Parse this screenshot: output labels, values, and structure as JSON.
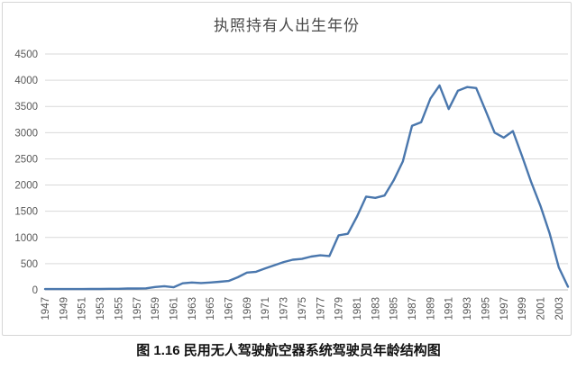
{
  "caption": "图 1.16  民用无人驾驶航空器系统驾驶员年龄结构图",
  "chart_data": {
    "type": "line",
    "title": "执照持有人出生年份",
    "xlabel": "",
    "ylabel": "",
    "ylim": [
      0,
      4500
    ],
    "yticks": [
      0,
      500,
      1000,
      1500,
      2000,
      2500,
      3000,
      3500,
      4000,
      4500
    ],
    "grid": "horizontal",
    "legend": "none",
    "line_color": "#4a77ad",
    "text_color": "#595959",
    "grid_color": "#d9d9d9",
    "axis_color": "#bfbfbf",
    "x": [
      1947,
      1948,
      1949,
      1950,
      1951,
      1952,
      1953,
      1954,
      1955,
      1956,
      1957,
      1958,
      1959,
      1960,
      1961,
      1962,
      1963,
      1964,
      1965,
      1966,
      1967,
      1968,
      1969,
      1970,
      1971,
      1972,
      1973,
      1974,
      1975,
      1976,
      1977,
      1978,
      1979,
      1980,
      1981,
      1982,
      1983,
      1984,
      1985,
      1986,
      1987,
      1988,
      1989,
      1990,
      1991,
      1992,
      1993,
      1994,
      1995,
      1996,
      1997,
      1998,
      1999,
      2000,
      2001,
      2002,
      2003,
      2004
    ],
    "values": [
      15,
      15,
      15,
      15,
      15,
      18,
      18,
      20,
      20,
      25,
      25,
      30,
      55,
      70,
      50,
      125,
      140,
      130,
      140,
      155,
      170,
      240,
      330,
      345,
      410,
      470,
      530,
      575,
      590,
      635,
      660,
      645,
      1040,
      1070,
      1400,
      1780,
      1755,
      1800,
      2090,
      2450,
      3130,
      3200,
      3650,
      3900,
      3450,
      3800,
      3870,
      3850,
      3430,
      3000,
      2905,
      3030,
      2550,
      2050,
      1600,
      1080,
      430,
      60
    ],
    "xtick_labels": [
      1947,
      1949,
      1951,
      1953,
      1955,
      1957,
      1959,
      1961,
      1963,
      1965,
      1967,
      1969,
      1971,
      1973,
      1975,
      1977,
      1979,
      1981,
      1983,
      1985,
      1987,
      1989,
      1991,
      1993,
      1995,
      1997,
      1999,
      2001,
      2003
    ]
  }
}
